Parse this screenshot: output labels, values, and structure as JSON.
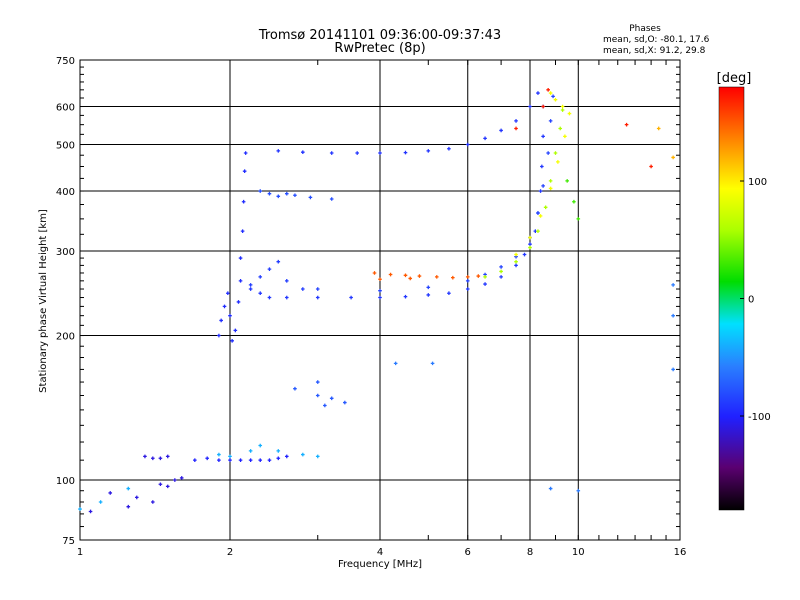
{
  "chart_data": {
    "type": "scatter",
    "title": "Tromsø 20141101 09:36:00-09:37:43",
    "subtitle": "RwPretec (8p)",
    "phases_info": {
      "heading": "Phases",
      "line_o": "mean, sd,O: -80.1, 17.6",
      "line_x": "mean, sd,X:  91.2, 29.8"
    },
    "xlabel": "Frequency [MHz]",
    "ylabel": "Stationary phase Virtual Height [km]",
    "x_scale": "log",
    "y_scale": "log",
    "xlim": [
      1,
      16
    ],
    "ylim": [
      75,
      750
    ],
    "xticks": [
      1,
      2,
      4,
      6,
      8,
      10,
      16
    ],
    "xtick_labels": [
      "1",
      "2",
      "4",
      "6",
      "8",
      "10",
      "16"
    ],
    "yticks": [
      75,
      100,
      200,
      300,
      400,
      500,
      600,
      750
    ],
    "ytick_labels": [
      "75",
      "100",
      "200",
      "300",
      "400",
      "500",
      "600",
      "750"
    ],
    "x_gridlines": [
      2,
      4,
      6,
      8,
      10
    ],
    "y_gridlines": [
      100,
      200,
      300,
      400,
      500,
      600
    ],
    "grid": true,
    "colorbar": {
      "label": "[deg]",
      "range": [
        -180,
        180
      ],
      "ticks": [
        100,
        0,
        -100
      ],
      "tick_labels": [
        "100",
        "0",
        "-100"
      ]
    },
    "series": [
      {
        "phase": -110,
        "points": [
          [
            1.05,
            86
          ],
          [
            1.15,
            94
          ],
          [
            1.25,
            88
          ],
          [
            1.3,
            92
          ],
          [
            1.35,
            112
          ],
          [
            1.4,
            111
          ],
          [
            1.45,
            111
          ],
          [
            1.5,
            112
          ],
          [
            1.45,
            98
          ],
          [
            1.55,
            100
          ],
          [
            1.6,
            101
          ],
          [
            1.4,
            90
          ],
          [
            1.5,
            97
          ]
        ]
      },
      {
        "phase": -100,
        "points": [
          [
            1.7,
            110
          ],
          [
            1.8,
            111
          ],
          [
            1.9,
            110
          ],
          [
            2.0,
            110
          ],
          [
            2.1,
            110
          ],
          [
            2.2,
            110
          ],
          [
            2.3,
            110
          ],
          [
            2.4,
            110
          ],
          [
            2.5,
            111
          ],
          [
            2.6,
            112
          ]
        ]
      },
      {
        "phase": -95,
        "points": [
          [
            1.9,
            200
          ],
          [
            1.92,
            215
          ],
          [
            1.95,
            230
          ],
          [
            1.98,
            245
          ],
          [
            2.0,
            220
          ],
          [
            2.02,
            195
          ],
          [
            2.05,
            205
          ],
          [
            2.08,
            235
          ],
          [
            2.1,
            260
          ],
          [
            2.1,
            290
          ],
          [
            2.12,
            330
          ],
          [
            2.13,
            380
          ],
          [
            2.14,
            440
          ],
          [
            2.15,
            480
          ]
        ]
      },
      {
        "phase": -90,
        "points": [
          [
            2.2,
            250
          ],
          [
            2.3,
            245
          ],
          [
            2.4,
            240
          ],
          [
            2.6,
            240
          ],
          [
            3.0,
            240
          ],
          [
            3.5,
            240
          ],
          [
            4.0,
            240
          ],
          [
            4.5,
            241
          ],
          [
            5.0,
            243
          ],
          [
            5.5,
            245
          ],
          [
            6.0,
            250
          ],
          [
            6.5,
            256
          ],
          [
            7.0,
            265
          ],
          [
            7.5,
            280
          ],
          [
            7.8,
            295
          ],
          [
            8.0,
            310
          ],
          [
            8.2,
            330
          ],
          [
            8.3,
            360
          ],
          [
            8.4,
            400
          ],
          [
            8.45,
            450
          ],
          [
            8.5,
            520
          ],
          [
            8.5,
            600
          ]
        ]
      },
      {
        "phase": -88,
        "points": [
          [
            2.2,
            255
          ],
          [
            2.3,
            265
          ],
          [
            2.4,
            275
          ],
          [
            2.5,
            285
          ],
          [
            2.6,
            260
          ],
          [
            2.8,
            250
          ]
        ]
      },
      {
        "phase": -85,
        "points": [
          [
            3.0,
            250
          ],
          [
            4.0,
            248
          ],
          [
            5.0,
            252
          ],
          [
            6.0,
            260
          ],
          [
            6.5,
            268
          ],
          [
            7.0,
            278
          ],
          [
            7.5,
            292
          ],
          [
            8.0,
            320
          ],
          [
            8.3,
            360
          ],
          [
            8.5,
            410
          ],
          [
            8.7,
            480
          ],
          [
            8.8,
            560
          ],
          [
            8.9,
            630
          ]
        ]
      },
      {
        "phase": -92,
        "points": [
          [
            2.5,
            485
          ],
          [
            2.8,
            482
          ],
          [
            3.2,
            480
          ],
          [
            3.6,
            480
          ],
          [
            4.0,
            480
          ],
          [
            4.5,
            481
          ],
          [
            5.0,
            485
          ],
          [
            5.5,
            490
          ],
          [
            6.0,
            500
          ],
          [
            6.5,
            515
          ],
          [
            7.0,
            535
          ],
          [
            7.5,
            560
          ],
          [
            8.0,
            600
          ],
          [
            8.3,
            640
          ]
        ]
      },
      {
        "phase": -80,
        "points": [
          [
            2.3,
            400
          ],
          [
            2.4,
            395
          ],
          [
            2.5,
            390
          ],
          [
            2.6,
            395
          ],
          [
            2.7,
            392
          ],
          [
            2.9,
            388
          ],
          [
            3.2,
            385
          ]
        ]
      },
      {
        "phase": -75,
        "points": [
          [
            2.7,
            155
          ],
          [
            3.0,
            150
          ],
          [
            3.2,
            148
          ],
          [
            3.4,
            145
          ],
          [
            3.0,
            160
          ],
          [
            3.1,
            143
          ]
        ]
      },
      {
        "phase": -40,
        "points": [
          [
            1.0,
            87
          ],
          [
            1.1,
            90
          ],
          [
            1.25,
            96
          ],
          [
            2.2,
            115
          ],
          [
            2.3,
            118
          ],
          [
            2.5,
            115
          ],
          [
            2.8,
            113
          ],
          [
            3.0,
            112
          ],
          [
            2.0,
            112
          ],
          [
            1.9,
            113
          ]
        ]
      },
      {
        "phase": 60,
        "points": [
          [
            6.5,
            265
          ],
          [
            7.0,
            272
          ],
          [
            7.5,
            285
          ],
          [
            8.0,
            305
          ],
          [
            8.3,
            330
          ],
          [
            8.6,
            370
          ],
          [
            8.8,
            420
          ],
          [
            9.0,
            480
          ],
          [
            9.2,
            540
          ],
          [
            9.3,
            590
          ]
        ]
      },
      {
        "phase": 90,
        "points": [
          [
            7.5,
            295
          ],
          [
            8.0,
            320
          ],
          [
            8.4,
            355
          ],
          [
            8.8,
            405
          ],
          [
            9.1,
            460
          ],
          [
            9.4,
            520
          ],
          [
            9.6,
            580
          ],
          [
            9.3,
            600
          ],
          [
            9.0,
            620
          ],
          [
            8.8,
            640
          ]
        ]
      },
      {
        "phase": 150,
        "points": [
          [
            3.9,
            270
          ],
          [
            4.2,
            268
          ],
          [
            4.5,
            267
          ],
          [
            4.8,
            266
          ],
          [
            5.2,
            265
          ],
          [
            5.6,
            264
          ],
          [
            6.0,
            265
          ],
          [
            6.3,
            266
          ],
          [
            4.0,
            262
          ],
          [
            4.6,
            263
          ]
        ]
      },
      {
        "phase": 170,
        "points": [
          [
            7.5,
            540
          ],
          [
            8.5,
            600
          ],
          [
            8.7,
            650
          ],
          [
            14,
            450
          ],
          [
            12.5,
            550
          ]
        ]
      },
      {
        "phase": 120,
        "points": [
          [
            14.5,
            540
          ],
          [
            15.5,
            470
          ]
        ]
      },
      {
        "phase": 30,
        "points": [
          [
            9.5,
            420
          ],
          [
            9.8,
            380
          ],
          [
            10,
            350
          ]
        ]
      },
      {
        "phase": -60,
        "points": [
          [
            15.5,
            255
          ],
          [
            15.5,
            220
          ],
          [
            15.5,
            170
          ],
          [
            4.3,
            175
          ],
          [
            5.1,
            175
          ],
          [
            10,
            95
          ],
          [
            8.8,
            96
          ]
        ]
      }
    ]
  }
}
